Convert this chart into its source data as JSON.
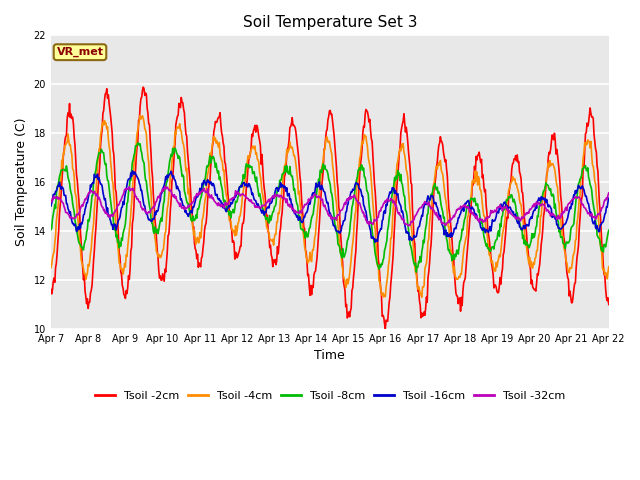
{
  "title": "Soil Temperature Set 3",
  "xlabel": "Time",
  "ylabel": "Soil Temperature (C)",
  "ylim": [
    10,
    22
  ],
  "yticks": [
    10,
    12,
    14,
    16,
    18,
    20,
    22
  ],
  "bg_color": "#e8e8e8",
  "fig_bg_color": "#ffffff",
  "grid_color": "#ffffff",
  "annotation_label": "VR_met",
  "x_tick_labels": [
    "Apr 7",
    "Apr 8",
    "Apr 9",
    "Apr 10",
    "Apr 11",
    "Apr 12",
    "Apr 13",
    "Apr 14",
    "Apr 15",
    "Apr 16",
    "Apr 17",
    "Apr 18",
    "Apr 19",
    "Apr 20",
    "Apr 21",
    "Apr 22"
  ],
  "legend_entries": [
    "Tsoil -2cm",
    "Tsoil -4cm",
    "Tsoil -8cm",
    "Tsoil -16cm",
    "Tsoil -32cm"
  ],
  "line_colors": [
    "#ff0000",
    "#ff8c00",
    "#00bb00",
    "#0000cc",
    "#bb00bb"
  ],
  "line_widths": [
    1.2,
    1.2,
    1.2,
    1.2,
    1.2
  ],
  "title_fontsize": 11,
  "label_fontsize": 9,
  "tick_fontsize": 7,
  "legend_fontsize": 8
}
